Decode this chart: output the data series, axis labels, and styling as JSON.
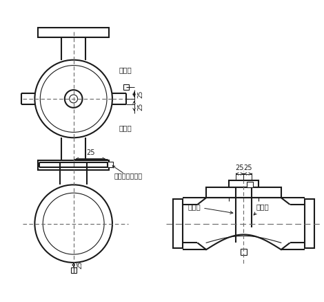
{
  "bg_color": "#ffffff",
  "line_color": "#1a1a1a",
  "dash_color": "#666666",
  "labels": {
    "cewenkuai": "测温块",
    "redianjian": "热电偶",
    "fatianjianmian": "阀体阀盖连接面",
    "dim25": "25"
  },
  "figsize": [
    4.7,
    4.37
  ],
  "dpi": 100
}
